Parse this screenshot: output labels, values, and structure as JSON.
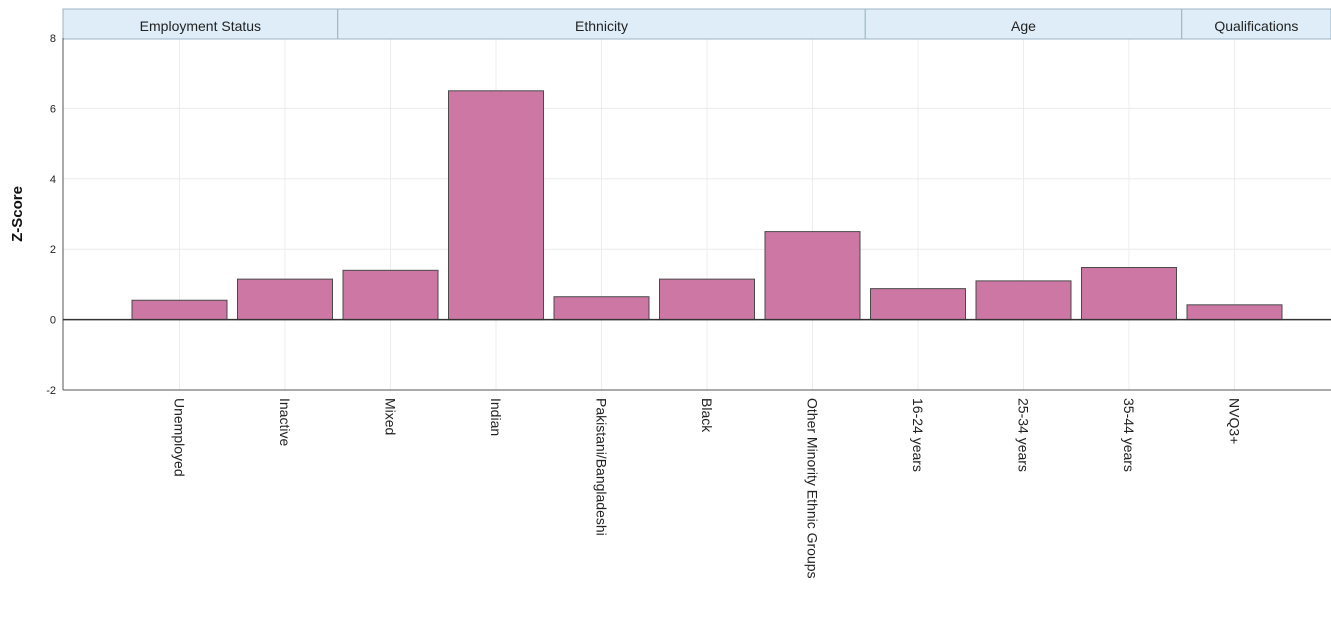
{
  "chart_data": {
    "type": "bar",
    "ylabel": "Z-Score",
    "xlabel": "",
    "ylim": [
      -2,
      8
    ],
    "yticks": [
      -2,
      0,
      2,
      4,
      6,
      8
    ],
    "grid": true,
    "categories": [
      "Unemployed",
      "Inactive",
      "Mixed",
      "Indian",
      "Pakistani/Bangladeshi",
      "Black",
      "Other Minority Ethnic Groups",
      "16-24 years",
      "25-34 years",
      "35-44 years",
      "NVQ3+"
    ],
    "values": [
      0.55,
      1.15,
      1.4,
      6.5,
      0.65,
      1.15,
      2.5,
      0.88,
      1.1,
      1.48,
      0.42
    ],
    "groups": [
      {
        "label": "Employment Status",
        "start": 0,
        "end": 1
      },
      {
        "label": "Ethnicity",
        "start": 2,
        "end": 6
      },
      {
        "label": "Age",
        "start": 7,
        "end": 9
      },
      {
        "label": "Qualifications",
        "start": 10,
        "end": 10
      }
    ]
  },
  "colors": {
    "bar_fill": "#cc77a4",
    "bar_stroke": "#4a4a4a",
    "group_header_fill": "#deedf8",
    "group_header_stroke": "#9cb3c6",
    "grid": "#ececec",
    "axis": "#555555"
  }
}
